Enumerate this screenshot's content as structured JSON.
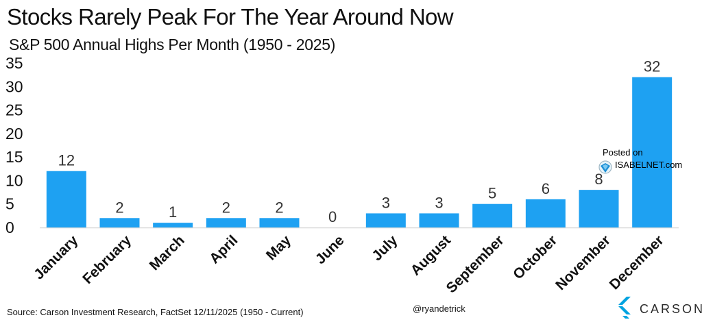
{
  "title": "Stocks Rarely Peak For The Year Around Now",
  "subtitle": "S&P 500 Annual Highs Per Month (1950 - 2025)",
  "source": "Source: Carson Investment Research, FactSet 12/11/2025 (1950 - Current)",
  "handle": "@ryandetrick",
  "watermark": {
    "posted": "Posted on",
    "site": "ISABELNET.com"
  },
  "brand": {
    "name": "CARSON",
    "color": "#00a3e0"
  },
  "colors": {
    "bar": "#1ea1f2",
    "axis": "#d9d9d9",
    "text": "#111111"
  },
  "chart_data": {
    "type": "bar",
    "categories": [
      "January",
      "February",
      "March",
      "April",
      "May",
      "June",
      "July",
      "August",
      "September",
      "October",
      "November",
      "December"
    ],
    "values": [
      12,
      2,
      1,
      2,
      2,
      0,
      3,
      3,
      5,
      6,
      8,
      32
    ],
    "title": "Stocks Rarely Peak For The Year Around Now",
    "subtitle": "S&P 500 Annual Highs Per Month (1950 - 2025)",
    "xlabel": "",
    "ylabel": "",
    "ylim": [
      0,
      35
    ],
    "yticks": [
      0,
      5,
      10,
      15,
      20,
      25,
      30,
      35
    ],
    "grid": false,
    "data_labels": true,
    "legend": "none"
  }
}
